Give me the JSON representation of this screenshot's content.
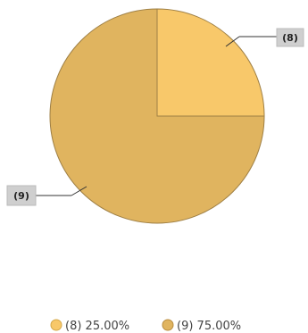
{
  "chart_data": {
    "type": "pie",
    "categories": [
      "(8)",
      "(9)"
    ],
    "values": [
      25,
      75
    ],
    "colors": [
      "#f8c86a",
      "#e0b45f"
    ],
    "start": "top",
    "direction": "clockwise",
    "legend_position": "bottom",
    "legend": [
      {
        "label": "(8) 25.00%"
      },
      {
        "label": "(9) 75.00%"
      }
    ]
  }
}
